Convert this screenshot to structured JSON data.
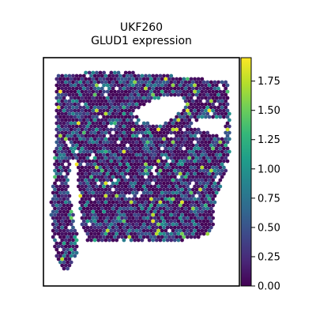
{
  "chart_data": {
    "type": "scatter",
    "subtype": "spatial-hexbin",
    "title_lines": [
      "UKF260",
      "GLUD1 expression"
    ],
    "xlabel": "",
    "ylabel": "",
    "colorbar": {
      "colormap": "viridis",
      "range": [
        0.0,
        1.95
      ],
      "ticks": [
        0.0,
        0.25,
        0.5,
        0.75,
        1.0,
        1.25,
        1.5,
        1.75
      ],
      "tick_labels": [
        "0.00",
        "0.25",
        "0.50",
        "0.75",
        "1.00",
        "1.25",
        "1.50",
        "1.75"
      ]
    },
    "axes_ticks_visible": false,
    "grid": false,
    "background_value": 0.0
  },
  "colors": {
    "viridis_stops": [
      "#440154",
      "#482878",
      "#3e4989",
      "#31688e",
      "#26828e",
      "#1f9e89",
      "#35b779",
      "#6ece58",
      "#b5de2b",
      "#fde725"
    ],
    "frame": "#000000",
    "background": "#ffffff"
  }
}
